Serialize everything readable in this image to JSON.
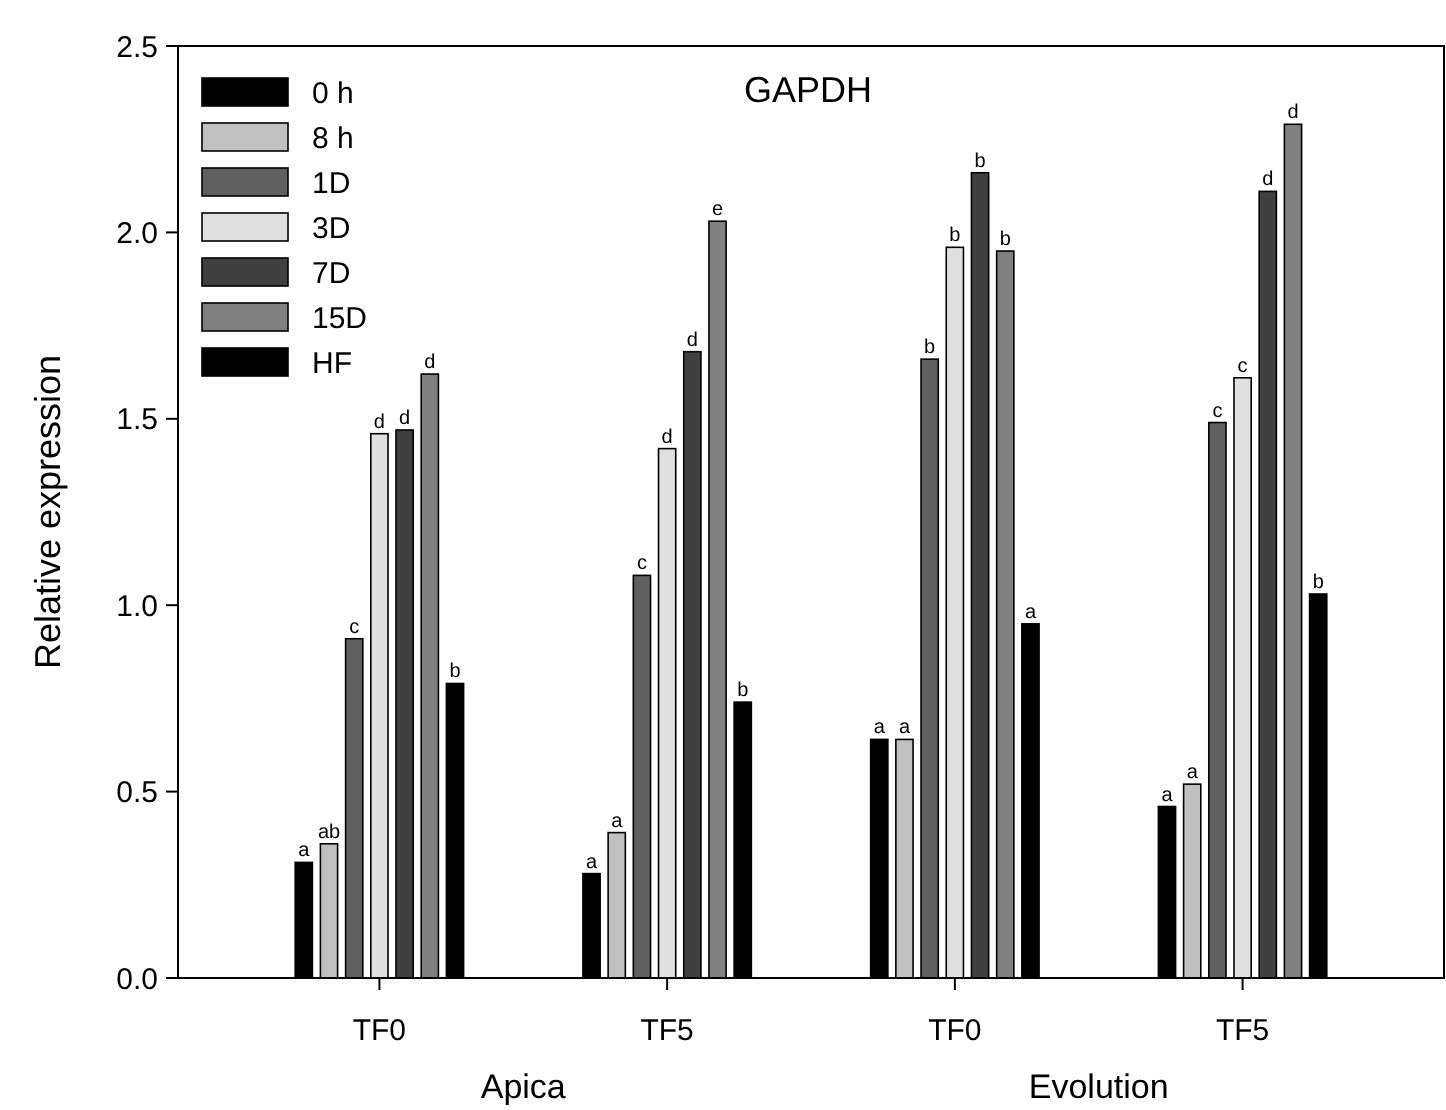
{
  "chart_data": {
    "type": "bar",
    "title": "GAPDH",
    "ylabel": "Relative expression",
    "categories": [
      "TF0",
      "TF5",
      "TF0",
      "TF5"
    ],
    "annotations": [
      "Apica",
      "Evolution"
    ],
    "series": [
      {
        "name": "0 h",
        "color": "#000000",
        "values": [
          0.31,
          0.28,
          0.64,
          0.46
        ],
        "value_labels": [
          "a",
          "a",
          "a",
          "a"
        ]
      },
      {
        "name": "8 h",
        "color": "#c0c0c0",
        "values": [
          0.36,
          0.39,
          0.64,
          0.52
        ],
        "value_labels": [
          "ab",
          "a",
          "a",
          "a"
        ]
      },
      {
        "name": "1D",
        "color": "#606060",
        "values": [
          0.91,
          1.08,
          1.66,
          1.49
        ],
        "value_labels": [
          "c",
          "c",
          "b",
          "c"
        ]
      },
      {
        "name": "3D",
        "color": "#e0e0e0",
        "values": [
          1.46,
          1.42,
          1.96,
          1.61
        ],
        "value_labels": [
          "d",
          "d",
          "b",
          "c"
        ]
      },
      {
        "name": "7D",
        "color": "#404040",
        "values": [
          1.47,
          1.68,
          2.16,
          2.11
        ],
        "value_labels": [
          "d",
          "d",
          "b",
          "d"
        ]
      },
      {
        "name": "15D",
        "color": "#808080",
        "values": [
          1.62,
          2.03,
          1.95,
          2.29
        ],
        "value_labels": [
          "d",
          "e",
          "b",
          "d"
        ]
      },
      {
        "name": "HF",
        "color": "#000000",
        "values": [
          0.79,
          0.74,
          0.95,
          1.03
        ],
        "value_labels": [
          "b",
          "b",
          "a",
          "b"
        ]
      }
    ],
    "ylim": [
      0,
      2.5
    ],
    "yticks": [
      {
        "value": 0,
        "label": "0.0"
      },
      {
        "value": 0.5,
        "label": "0.5"
      },
      {
        "value": 1,
        "label": "1.0"
      },
      {
        "value": 1.5,
        "label": "1.5"
      },
      {
        "value": 2,
        "label": "2.0"
      },
      {
        "value": 2.5,
        "label": "2.5"
      }
    ],
    "legend": "top left",
    "grid": false
  }
}
